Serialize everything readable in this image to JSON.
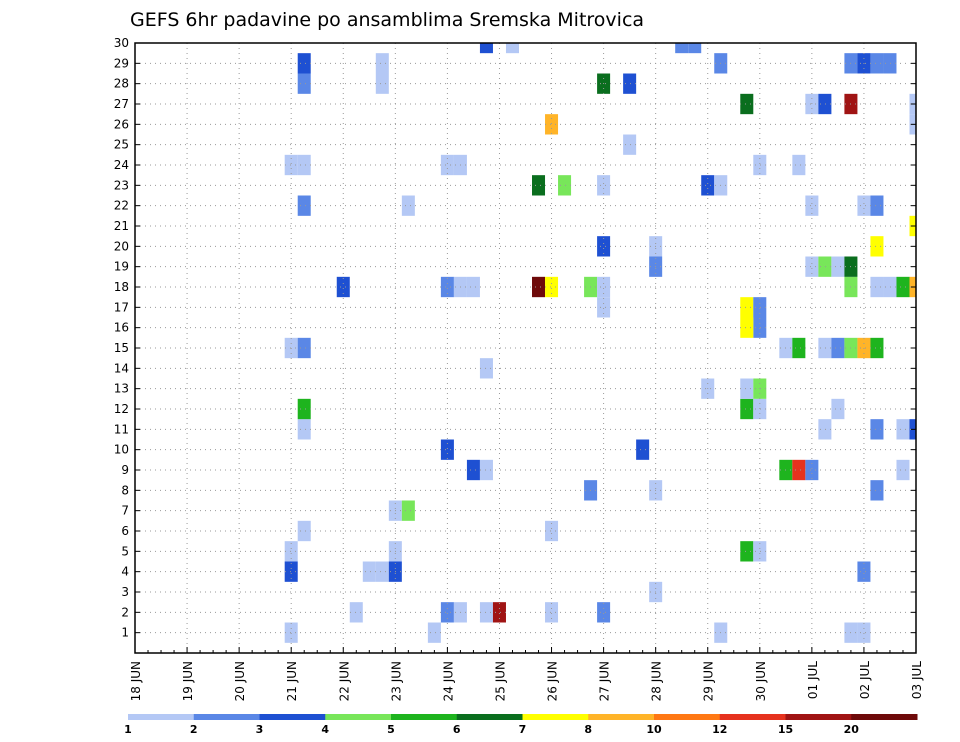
{
  "chart_data": {
    "type": "heatmap",
    "title": "GEFS 6hr padavine po ansamblima Sremska Mitrovica",
    "y_ticks": [
      "1",
      "2",
      "3",
      "4",
      "5",
      "6",
      "7",
      "8",
      "9",
      "10",
      "11",
      "12",
      "13",
      "14",
      "15",
      "16",
      "17",
      "18",
      "19",
      "20",
      "21",
      "22",
      "23",
      "24",
      "25",
      "26",
      "27",
      "28",
      "29",
      "30"
    ],
    "x_ticks": [
      "18 JUN",
      "19 JUN",
      "20 JUN",
      "21 JUN",
      "22 JUN",
      "23 JUN",
      "24 JUN",
      "25 JUN",
      "26 JUN",
      "27 JUN",
      "28 JUN",
      "29 JUN",
      "30 JUN",
      "01 JUL",
      "02 JUL",
      "03 JUL"
    ],
    "x_range": [
      "18 JUN",
      "03 JUL"
    ],
    "y_range": [
      0,
      30
    ],
    "time_step_hours": 6,
    "grid": true,
    "colorbar": {
      "levels": [
        "1",
        "2",
        "3",
        "4",
        "5",
        "6",
        "7",
        "8",
        "10",
        "12",
        "15",
        "20"
      ],
      "colors": [
        "#b4c8f5",
        "#5a87e6",
        "#1e50d2",
        "#78e65a",
        "#1eb41e",
        "#0a6e1e",
        "#ffff00",
        "#ffb428",
        "#ff7814",
        "#e6321e",
        "#a01414",
        "#6e0a0a"
      ]
    },
    "cells": [
      {
        "member": 1,
        "time": "21 JUN 00",
        "level": 1
      },
      {
        "member": 1,
        "time": "23 JUN 18",
        "level": 1
      },
      {
        "member": 1,
        "time": "29 JUN 06",
        "level": 1
      },
      {
        "member": 1,
        "time": "01 JUL 18",
        "level": 1
      },
      {
        "member": 1,
        "time": "02 JUL 00",
        "level": 1
      },
      {
        "member": 2,
        "time": "22 JUN 06",
        "level": 1
      },
      {
        "member": 2,
        "time": "24 JUN 00",
        "level": 2
      },
      {
        "member": 2,
        "time": "24 JUN 06",
        "level": 1
      },
      {
        "member": 2,
        "time": "24 JUN 18",
        "level": 1
      },
      {
        "member": 2,
        "time": "25 JUN 00",
        "level": 15
      },
      {
        "member": 2,
        "time": "26 JUN 00",
        "level": 1
      },
      {
        "member": 2,
        "time": "27 JUN 00",
        "level": 2
      },
      {
        "member": 3,
        "time": "28 JUN 00",
        "level": 1
      },
      {
        "member": 4,
        "time": "21 JUN 00",
        "level": 3
      },
      {
        "member": 4,
        "time": "22 JUN 12",
        "level": 1
      },
      {
        "member": 4,
        "time": "22 JUN 18",
        "level": 1
      },
      {
        "member": 4,
        "time": "23 JUN 00",
        "level": 3
      },
      {
        "member": 4,
        "time": "02 JUL 00",
        "level": 2
      },
      {
        "member": 5,
        "time": "21 JUN 00",
        "level": 1
      },
      {
        "member": 5,
        "time": "23 JUN 00",
        "level": 1
      },
      {
        "member": 5,
        "time": "29 JUN 18",
        "level": 5
      },
      {
        "member": 5,
        "time": "30 JUN 00",
        "level": 1
      },
      {
        "member": 6,
        "time": "21 JUN 06",
        "level": 1
      },
      {
        "member": 6,
        "time": "26 JUN 00",
        "level": 1
      },
      {
        "member": 7,
        "time": "23 JUN 00",
        "level": 1
      },
      {
        "member": 7,
        "time": "23 JUN 06",
        "level": 4
      },
      {
        "member": 8,
        "time": "26 JUN 18",
        "level": 2
      },
      {
        "member": 8,
        "time": "28 JUN 00",
        "level": 1
      },
      {
        "member": 8,
        "time": "02 JUL 06",
        "level": 2
      },
      {
        "member": 9,
        "time": "24 JUN 12",
        "level": 3
      },
      {
        "member": 9,
        "time": "24 JUN 18",
        "level": 1
      },
      {
        "member": 9,
        "time": "30 JUN 12",
        "level": 5
      },
      {
        "member": 9,
        "time": "30 JUN 18",
        "level": 12
      },
      {
        "member": 9,
        "time": "01 JUL 00",
        "level": 2
      },
      {
        "member": 9,
        "time": "02 JUL 18",
        "level": 1
      },
      {
        "member": 10,
        "time": "24 JUN 00",
        "level": 3
      },
      {
        "member": 10,
        "time": "27 JUN 18",
        "level": 3
      },
      {
        "member": 11,
        "time": "21 JUN 06",
        "level": 1
      },
      {
        "member": 11,
        "time": "01 JUL 06",
        "level": 1
      },
      {
        "member": 11,
        "time": "02 JUL 06",
        "level": 2
      },
      {
        "member": 11,
        "time": "02 JUL 18",
        "level": 1
      },
      {
        "member": 11,
        "time": "03 JUL 00",
        "level": 3
      },
      {
        "member": 12,
        "time": "21 JUN 06",
        "level": 5
      },
      {
        "member": 12,
        "time": "29 JUN 18",
        "level": 5
      },
      {
        "member": 12,
        "time": "30 JUN 00",
        "level": 1
      },
      {
        "member": 12,
        "time": "01 JUL 12",
        "level": 1
      },
      {
        "member": 13,
        "time": "29 JUN 18",
        "level": 1
      },
      {
        "member": 13,
        "time": "30 JUN 00",
        "level": 4
      },
      {
        "member": 13,
        "time": "29 JUN 00",
        "level": 1
      },
      {
        "member": 14,
        "time": "24 JUN 18",
        "level": 1
      },
      {
        "member": 15,
        "time": "21 JUN 00",
        "level": 1
      },
      {
        "member": 15,
        "time": "21 JUN 06",
        "level": 2
      },
      {
        "member": 15,
        "time": "30 JUN 12",
        "level": 1
      },
      {
        "member": 15,
        "time": "30 JUN 18",
        "level": 5
      },
      {
        "member": 15,
        "time": "01 JUL 06",
        "level": 1
      },
      {
        "member": 15,
        "time": "01 JUL 12",
        "level": 2
      },
      {
        "member": 15,
        "time": "01 JUL 18",
        "level": 4
      },
      {
        "member": 15,
        "time": "02 JUL 00",
        "level": 8
      },
      {
        "member": 15,
        "time": "02 JUL 06",
        "level": 5
      },
      {
        "member": 16,
        "time": "30 JUN 00",
        "level": 2
      },
      {
        "member": 16,
        "time": "29 JUN 18",
        "level": 7
      },
      {
        "member": 17,
        "time": "27 JUN 00",
        "level": 1
      },
      {
        "member": 17,
        "time": "29 JUN 18",
        "level": 7
      },
      {
        "member": 17,
        "time": "30 JUN 00",
        "level": 2
      },
      {
        "member": 18,
        "time": "22 JUN 00",
        "level": 3
      },
      {
        "member": 18,
        "time": "24 JUN 00",
        "level": 2
      },
      {
        "member": 18,
        "time": "24 JUN 06",
        "level": 1
      },
      {
        "member": 18,
        "time": "24 JUN 12",
        "level": 1
      },
      {
        "member": 18,
        "time": "25 JUN 18",
        "level": 20
      },
      {
        "member": 18,
        "time": "26 JUN 00",
        "level": 7
      },
      {
        "member": 18,
        "time": "26 JUN 18",
        "level": 4
      },
      {
        "member": 18,
        "time": "27 JUN 00",
        "level": 1
      },
      {
        "member": 18,
        "time": "01 JUL 18",
        "level": 4
      },
      {
        "member": 18,
        "time": "02 JUL 06",
        "level": 1
      },
      {
        "member": 18,
        "time": "02 JUL 12",
        "level": 1
      },
      {
        "member": 18,
        "time": "02 JUL 18",
        "level": 5
      },
      {
        "member": 18,
        "time": "03 JUL 00",
        "level": 8
      },
      {
        "member": 19,
        "time": "28 JUN 00",
        "level": 2
      },
      {
        "member": 19,
        "time": "01 JUL 00",
        "level": 1
      },
      {
        "member": 19,
        "time": "01 JUL 06",
        "level": 4
      },
      {
        "member": 19,
        "time": "01 JUL 12",
        "level": 1
      },
      {
        "member": 19,
        "time": "01 JUL 18",
        "level": 6
      },
      {
        "member": 20,
        "time": "27 JUN 00",
        "level": 3
      },
      {
        "member": 20,
        "time": "28 JUN 00",
        "level": 1
      },
      {
        "member": 20,
        "time": "02 JUL 06",
        "level": 7
      },
      {
        "member": 21,
        "time": "03 JUL 00",
        "level": 7
      },
      {
        "member": 22,
        "time": "21 JUN 06",
        "level": 2
      },
      {
        "member": 22,
        "time": "23 JUN 06",
        "level": 1
      },
      {
        "member": 22,
        "time": "01 JUL 00",
        "level": 1
      },
      {
        "member": 22,
        "time": "02 JUL 00",
        "level": 1
      },
      {
        "member": 22,
        "time": "02 JUL 06",
        "level": 2
      },
      {
        "member": 23,
        "time": "25 JUN 18",
        "level": 6
      },
      {
        "member": 23,
        "time": "26 JUN 06",
        "level": 4
      },
      {
        "member": 23,
        "time": "27 JUN 00",
        "level": 1
      },
      {
        "member": 23,
        "time": "29 JUN 00",
        "level": 3
      },
      {
        "member": 23,
        "time": "29 JUN 06",
        "level": 1
      },
      {
        "member": 24,
        "time": "21 JUN 00",
        "level": 1
      },
      {
        "member": 24,
        "time": "21 JUN 06",
        "level": 1
      },
      {
        "member": 24,
        "time": "24 JUN 00",
        "level": 1
      },
      {
        "member": 24,
        "time": "24 JUN 06",
        "level": 1
      },
      {
        "member": 24,
        "time": "30 JUN 00",
        "level": 1
      },
      {
        "member": 24,
        "time": "30 JUN 18",
        "level": 1
      },
      {
        "member": 25,
        "time": "27 JUN 12",
        "level": 1
      },
      {
        "member": 26,
        "time": "26 JUN 00",
        "level": 8
      },
      {
        "member": 26,
        "time": "03 JUL 00",
        "level": 1
      },
      {
        "member": 27,
        "time": "29 JUN 18",
        "level": 6
      },
      {
        "member": 27,
        "time": "01 JUL 00",
        "level": 1
      },
      {
        "member": 27,
        "time": "01 JUL 06",
        "level": 3
      },
      {
        "member": 27,
        "time": "01 JUL 18",
        "level": 15
      },
      {
        "member": 27,
        "time": "03 JUL 00",
        "level": 1
      },
      {
        "member": 28,
        "time": "21 JUN 06",
        "level": 2
      },
      {
        "member": 28,
        "time": "22 JUN 18",
        "level": 1
      },
      {
        "member": 28,
        "time": "27 JUN 00",
        "level": 6
      },
      {
        "member": 28,
        "time": "27 JUN 12",
        "level": 3
      },
      {
        "member": 29,
        "time": "21 JUN 06",
        "level": 3
      },
      {
        "member": 29,
        "time": "22 JUN 18",
        "level": 1
      },
      {
        "member": 29,
        "time": "29 JUN 06",
        "level": 2
      },
      {
        "member": 29,
        "time": "01 JUL 18",
        "level": 2
      },
      {
        "member": 29,
        "time": "02 JUL 00",
        "level": 3
      },
      {
        "member": 29,
        "time": "02 JUL 06",
        "level": 2
      },
      {
        "member": 29,
        "time": "02 JUL 12",
        "level": 2
      },
      {
        "member": 30,
        "time": "24 JUN 18",
        "level": 3
      },
      {
        "member": 30,
        "time": "25 JUN 06",
        "level": 1
      },
      {
        "member": 30,
        "time": "28 JUN 12",
        "level": 2
      },
      {
        "member": 30,
        "time": "28 JUN 18",
        "level": 2
      }
    ]
  }
}
